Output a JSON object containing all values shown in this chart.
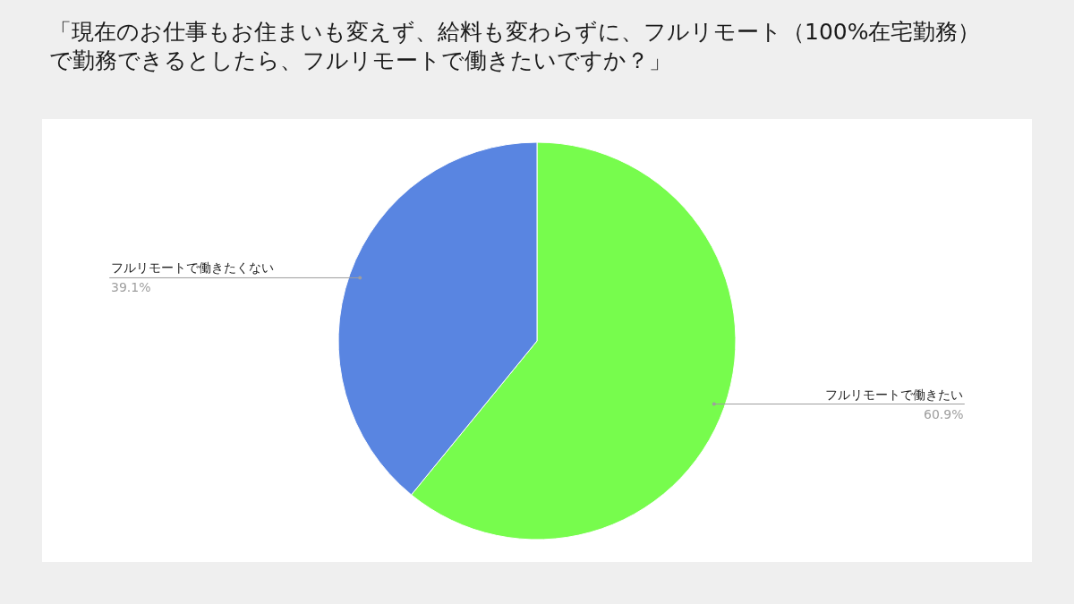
{
  "chart_data": {
    "type": "pie",
    "title": "「現在のお仕事もお住まいも変えず、給料も変わらずに、フルリモート（100%在宅勤務）で勤務できるとしたら、フルリモートで働きたいですか？」",
    "categories": [
      "フルリモートで働きたい",
      "フルリモートで働きたくない"
    ],
    "values": [
      60.9,
      39.1
    ],
    "colors": [
      "#77fc4d",
      "#5985e1"
    ],
    "value_labels": [
      "60.9%",
      "39.1%"
    ]
  }
}
